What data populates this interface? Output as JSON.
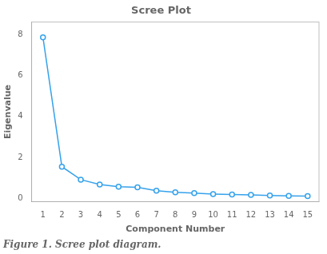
{
  "chart_data": {
    "type": "line",
    "title": "Scree Plot",
    "x_label": "Component Number",
    "y_label": "Eigenvalue",
    "caption": "Figure 1. Scree plot diagram.",
    "x": [
      1,
      2,
      3,
      4,
      5,
      6,
      7,
      8,
      9,
      10,
      11,
      12,
      13,
      14,
      15
    ],
    "values": [
      7.85,
      1.55,
      0.92,
      0.68,
      0.58,
      0.55,
      0.38,
      0.3,
      0.26,
      0.22,
      0.2,
      0.18,
      0.15,
      0.13,
      0.12
    ],
    "xlim": [
      0.4,
      15.6
    ],
    "xticks": [
      1,
      2,
      3,
      4,
      5,
      6,
      7,
      8,
      9,
      10,
      11,
      12,
      13,
      14,
      15
    ],
    "ylim": [
      -0.15,
      8.6
    ],
    "yticks": [
      0,
      2,
      4,
      6,
      8
    ],
    "grid": false,
    "marker": "circle"
  }
}
